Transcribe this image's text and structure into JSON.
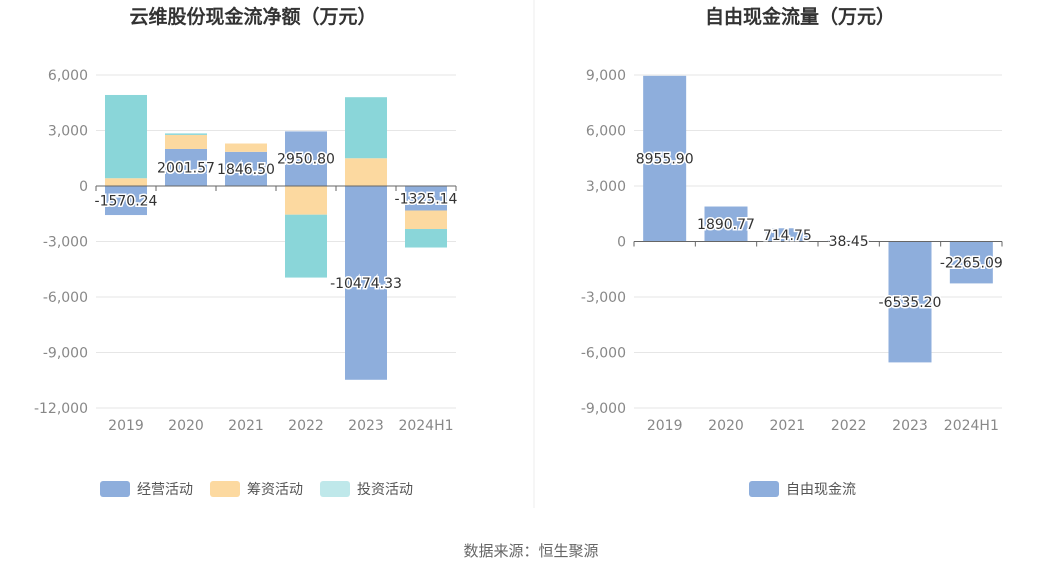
{
  "colors": {
    "operating": "#8eaedc",
    "financing": "#fcd9a0",
    "investing": "#8ad6d9",
    "free_cash_flow": "#8eaedc",
    "grid": "#e6e6e6",
    "axis": "#666666"
  },
  "chart_data": [
    {
      "type": "bar",
      "stacked": true,
      "title": "云维股份现金流净额（万元）",
      "categories": [
        "2019",
        "2020",
        "2021",
        "2022",
        "2023",
        "2024H1"
      ],
      "ylim": [
        -12000,
        6000
      ],
      "yticks": [
        "6,000",
        "3,000",
        "0",
        "-3,000",
        "-6,000",
        "-9,000",
        "-12,000"
      ],
      "ytick_values": [
        6000,
        3000,
        0,
        -3000,
        -6000,
        -9000,
        -12000
      ],
      "series": [
        {
          "name": "经营活动",
          "color_key": "operating",
          "values": [
            -1570.24,
            2001.57,
            1846.5,
            2950.8,
            -10474.33,
            -1325.14
          ],
          "labels": [
            "-1570.24",
            "2001.57",
            "1846.50",
            "2950.80",
            "-10474.33",
            "-1325.14"
          ]
        },
        {
          "name": "筹资活动",
          "color_key": "financing",
          "values": [
            420,
            760,
            450,
            -1550,
            1500,
            -1000
          ]
        },
        {
          "name": "投资活动",
          "color_key": "investing",
          "values": [
            4500,
            80,
            0,
            -3400,
            3300,
            -1000
          ]
        }
      ],
      "legend_position": "bottom",
      "grid": true
    },
    {
      "type": "bar",
      "title": "自由现金流量（万元）",
      "categories": [
        "2019",
        "2020",
        "2021",
        "2022",
        "2023",
        "2024H1"
      ],
      "ylim": [
        -9000,
        9000
      ],
      "yticks": [
        "9,000",
        "6,000",
        "3,000",
        "0",
        "-3,000",
        "-6,000",
        "-9,000"
      ],
      "ytick_values": [
        9000,
        6000,
        3000,
        0,
        -3000,
        -6000,
        -9000
      ],
      "series": [
        {
          "name": "自由现金流",
          "color_key": "free_cash_flow",
          "values": [
            8955.9,
            1890.77,
            714.75,
            38.45,
            -6535.2,
            -2265.09
          ],
          "labels": [
            "8955.90",
            "1890.77",
            "714.75",
            "38.45",
            "-6535.20",
            "-2265.09"
          ]
        }
      ],
      "legend_position": "bottom",
      "grid": true
    }
  ],
  "source": "数据来源：恒生聚源"
}
